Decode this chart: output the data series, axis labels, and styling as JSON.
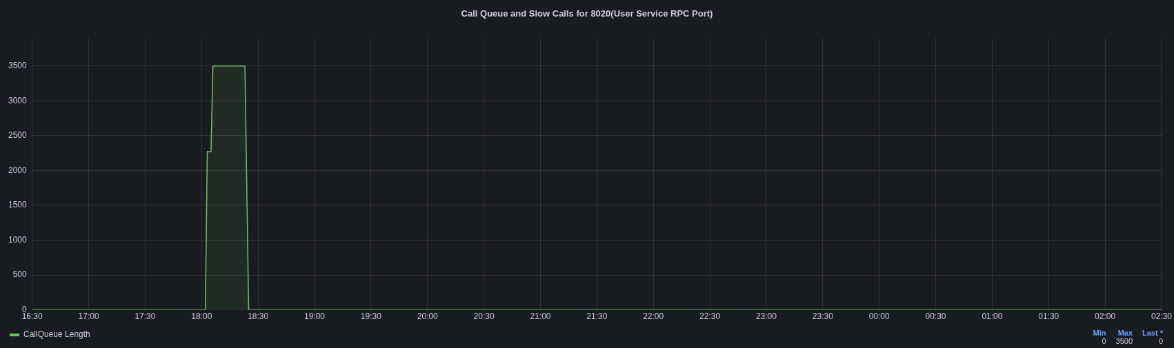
{
  "chart_data": {
    "type": "area",
    "title": "Call Queue and Slow Calls for 8020(User Service RPC Port)",
    "x": [
      "--01-01T16:30",
      "--01-01T18:02",
      "--01-01T18:03",
      "--01-01T18:05",
      "--01-01T18:06",
      "--01-01T18:23",
      "--01-01T18:25",
      "--01-02T02:30"
    ],
    "series": [
      {
        "name": "CallQueue Length",
        "color": "#73bf69",
        "values": [
          0,
          0,
          2270,
          2270,
          3500,
          3500,
          0,
          0
        ]
      }
    ],
    "xlim": [
      "--01-01T16:30",
      "--01-02T02:30"
    ],
    "xticks": [
      {
        "value": "--01-01T16:30",
        "label": "16:30"
      },
      {
        "value": "--01-01T17:00",
        "label": "17:00"
      },
      {
        "value": "--01-01T17:30",
        "label": "17:30"
      },
      {
        "value": "--01-01T18:00",
        "label": "18:00"
      },
      {
        "value": "--01-01T18:30",
        "label": "18:30"
      },
      {
        "value": "--01-01T19:00",
        "label": "19:00"
      },
      {
        "value": "--01-01T19:30",
        "label": "19:30"
      },
      {
        "value": "--01-01T20:00",
        "label": "20:00"
      },
      {
        "value": "--01-01T20:30",
        "label": "20:30"
      },
      {
        "value": "--01-01T21:00",
        "label": "21:00"
      },
      {
        "value": "--01-01T21:30",
        "label": "21:30"
      },
      {
        "value": "--01-01T22:00",
        "label": "22:00"
      },
      {
        "value": "--01-01T22:30",
        "label": "22:30"
      },
      {
        "value": "--01-01T23:00",
        "label": "23:00"
      },
      {
        "value": "--01-01T23:30",
        "label": "23:30"
      },
      {
        "value": "--01-02T00:00",
        "label": "00:00"
      },
      {
        "value": "--01-02T00:30",
        "label": "00:30"
      },
      {
        "value": "--01-02T01:00",
        "label": "01:00"
      },
      {
        "value": "--01-02T01:30",
        "label": "01:30"
      },
      {
        "value": "--01-02T02:00",
        "label": "02:00"
      },
      {
        "value": "--01-02T02:30",
        "label": "02:30"
      }
    ],
    "ylim": [
      0,
      3900
    ],
    "yticks": [
      0,
      500,
      1000,
      1500,
      2000,
      2500,
      3000,
      3500
    ],
    "grid": true,
    "legend": "bottom",
    "marker": "none",
    "line_style": "solid",
    "annotations": [
      "Min",
      "Max",
      "Last *",
      "0",
      "3500",
      "0"
    ]
  }
}
